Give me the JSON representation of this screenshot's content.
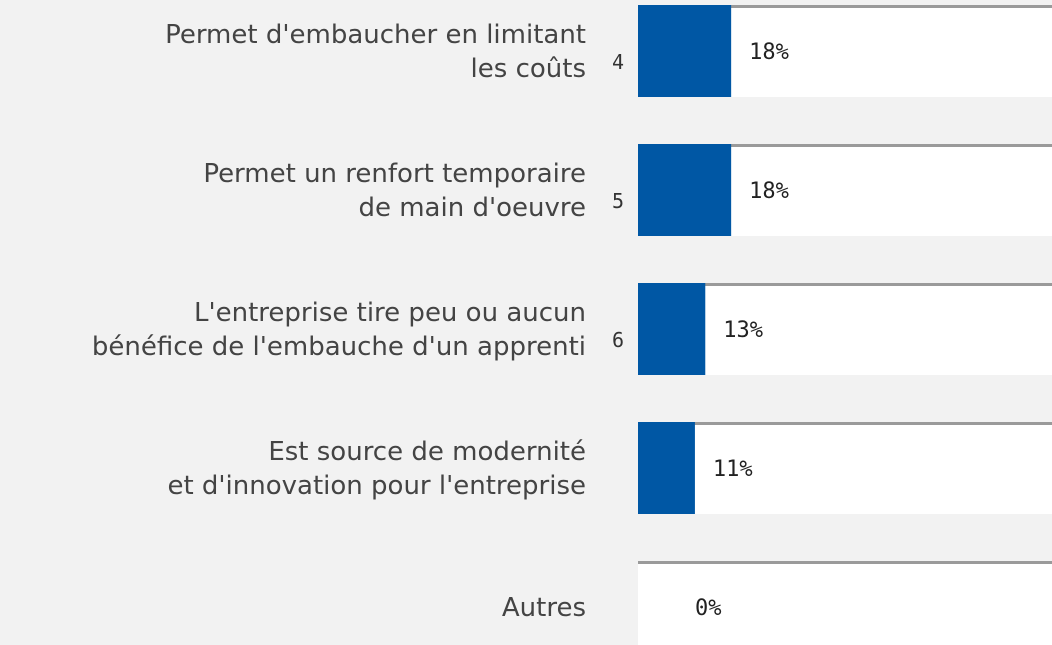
{
  "chart_data": {
    "type": "bar",
    "orientation": "horizontal",
    "categories": [
      [
        "Permet d'embaucher en limitant",
        "les coûts"
      ],
      [
        "Permet un renfort temporaire",
        "de main d'oeuvre"
      ],
      [
        "L'entreprise tire peu ou aucun",
        "bénéfice de l'embauche d'un apprenti"
      ],
      [
        "Est source de modernité",
        "et d'innovation pour l'entreprise"
      ],
      [
        "Autres"
      ]
    ],
    "ranks": [
      4,
      5,
      6,
      null,
      null
    ],
    "values": [
      18,
      18,
      13,
      11,
      0
    ],
    "value_labels": [
      "18%",
      "18%",
      "13%",
      "11%",
      "0%"
    ],
    "color": "#0057a4",
    "xlim": [
      0,
      80
    ]
  }
}
